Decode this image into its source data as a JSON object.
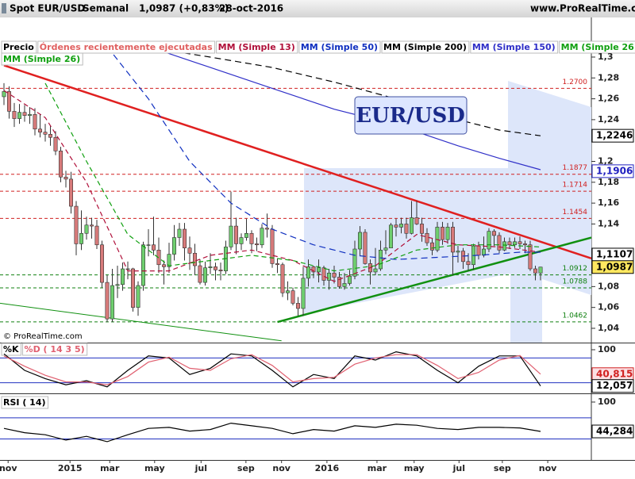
{
  "header": {
    "instrument": "Spot EUR/USD",
    "period": "Semanal",
    "quote": "1,0987 (+0,83%)",
    "date": "28-oct-2016",
    "site": "www.ProRealTime.com"
  },
  "copyright": "© ProRealTime.com",
  "legend_extra": [
    "Precio",
    "Órdenes recientemente ejecutadas"
  ],
  "chart_data": [
    {
      "type": "candlestick",
      "title": "EUR/USD",
      "xlim": [
        -0.77,
        113.85
      ],
      "ylim": [
        1.0263,
        1.3167
      ],
      "xticks": [
        {
          "value": 0.8,
          "label": "nov"
        },
        {
          "value": 12.8,
          "label": "2015"
        },
        {
          "value": 20.5,
          "label": "mar"
        },
        {
          "value": 29.2,
          "label": "may"
        },
        {
          "value": 38.2,
          "label": "jul"
        },
        {
          "value": 46.9,
          "label": "sep"
        },
        {
          "value": 53.8,
          "label": "nov"
        },
        {
          "value": 62.6,
          "label": "2016"
        },
        {
          "value": 72.3,
          "label": "mar"
        },
        {
          "value": 79.5,
          "label": "may"
        },
        {
          "value": 88.2,
          "label": "jul"
        },
        {
          "value": 96.6,
          "label": "sep"
        },
        {
          "value": 105.4,
          "label": "nov"
        }
      ],
      "yticks": [
        {
          "value": 1.3,
          "label": "1,3"
        },
        {
          "value": 1.28,
          "label": "1,28"
        },
        {
          "value": 1.26,
          "label": "1,26"
        },
        {
          "value": 1.24,
          "label": "1,24"
        },
        {
          "value": 1.2,
          "label": "1,2"
        },
        {
          "value": 1.18,
          "label": "1,18"
        },
        {
          "value": 1.16,
          "label": "1,16"
        },
        {
          "value": 1.14,
          "label": "1,14"
        },
        {
          "value": 1.08,
          "label": "1,08"
        },
        {
          "value": 1.06,
          "label": "1,06"
        },
        {
          "value": 1.04,
          "label": "1,04"
        }
      ],
      "up_color": "#6fcf6f",
      "down_color": "#d77a7a",
      "ohlc": {
        "open": [
          1.262,
          1.267,
          1.248,
          1.241,
          1.247,
          1.244,
          1.245,
          1.231,
          1.228,
          1.226,
          1.223,
          1.21,
          1.185,
          1.183,
          1.157,
          1.121,
          1.131,
          1.139,
          1.138,
          1.12,
          1.084,
          1.049,
          1.081,
          1.082,
          1.097,
          1.097,
          1.06,
          1.081,
          1.12,
          1.12,
          1.115,
          1.101,
          1.099,
          1.111,
          1.127,
          1.135,
          1.117,
          1.112,
          1.1,
          1.084,
          1.098,
          1.099,
          1.096,
          1.095,
          1.118,
          1.138,
          1.121,
          1.127,
          1.131,
          1.121,
          1.12,
          1.136,
          1.135,
          1.102,
          1.101,
          1.074,
          1.076,
          1.064,
          1.059,
          1.088,
          1.099,
          1.094,
          1.098,
          1.086,
          1.093,
          1.089,
          1.08,
          1.083,
          1.09,
          1.116,
          1.132,
          1.102,
          1.094,
          1.097,
          1.115,
          1.117,
          1.139,
          1.137,
          1.14,
          1.131,
          1.146,
          1.14,
          1.131,
          1.122,
          1.115,
          1.137,
          1.125,
          1.137,
          1.113,
          1.114,
          1.104,
          1.101,
          1.119,
          1.11,
          1.116,
          1.133,
          1.129,
          1.115,
          1.123,
          1.12,
          1.123,
          1.121,
          1.12,
          1.097,
          1.093
        ],
        "high": [
          1.275,
          1.272,
          1.256,
          1.255,
          1.254,
          1.252,
          1.251,
          1.245,
          1.236,
          1.234,
          1.229,
          1.214,
          1.191,
          1.19,
          1.162,
          1.153,
          1.147,
          1.146,
          1.144,
          1.124,
          1.091,
          1.097,
          1.1,
          1.103,
          1.104,
          1.098,
          1.085,
          1.123,
          1.135,
          1.147,
          1.127,
          1.105,
          1.122,
          1.139,
          1.141,
          1.141,
          1.128,
          1.121,
          1.106,
          1.104,
          1.112,
          1.103,
          1.103,
          1.124,
          1.171,
          1.146,
          1.131,
          1.145,
          1.134,
          1.127,
          1.14,
          1.15,
          1.139,
          1.107,
          1.103,
          1.085,
          1.079,
          1.07,
          1.099,
          1.106,
          1.1,
          1.106,
          1.1,
          1.097,
          1.1,
          1.094,
          1.093,
          1.096,
          1.124,
          1.138,
          1.135,
          1.106,
          1.117,
          1.124,
          1.134,
          1.141,
          1.145,
          1.146,
          1.146,
          1.162,
          1.162,
          1.146,
          1.136,
          1.126,
          1.142,
          1.142,
          1.141,
          1.142,
          1.119,
          1.117,
          1.112,
          1.121,
          1.123,
          1.128,
          1.136,
          1.135,
          1.132,
          1.127,
          1.127,
          1.127,
          1.128,
          1.124,
          1.124,
          1.1,
          1.099
        ],
        "low": [
          1.254,
          1.241,
          1.233,
          1.236,
          1.238,
          1.236,
          1.225,
          1.223,
          1.219,
          1.215,
          1.206,
          1.18,
          1.175,
          1.15,
          1.11,
          1.115,
          1.125,
          1.126,
          1.116,
          1.079,
          1.046,
          1.046,
          1.069,
          1.076,
          1.087,
          1.056,
          1.052,
          1.076,
          1.109,
          1.11,
          1.093,
          1.082,
          1.093,
          1.105,
          1.119,
          1.105,
          1.096,
          1.091,
          1.082,
          1.081,
          1.092,
          1.086,
          1.086,
          1.092,
          1.115,
          1.111,
          1.115,
          1.124,
          1.112,
          1.114,
          1.117,
          1.127,
          1.098,
          1.093,
          1.07,
          1.067,
          1.062,
          1.052,
          1.052,
          1.08,
          1.088,
          1.084,
          1.081,
          1.077,
          1.083,
          1.078,
          1.077,
          1.081,
          1.087,
          1.11,
          1.101,
          1.082,
          1.091,
          1.095,
          1.111,
          1.117,
          1.128,
          1.131,
          1.126,
          1.13,
          1.139,
          1.123,
          1.119,
          1.11,
          1.113,
          1.12,
          1.121,
          1.091,
          1.103,
          1.097,
          1.095,
          1.096,
          1.106,
          1.108,
          1.113,
          1.119,
          1.112,
          1.114,
          1.116,
          1.117,
          1.116,
          1.112,
          1.095,
          1.086,
          1.086
        ],
        "close": [
          1.267,
          1.248,
          1.241,
          1.247,
          1.244,
          1.245,
          1.231,
          1.228,
          1.226,
          1.223,
          1.21,
          1.185,
          1.183,
          1.157,
          1.121,
          1.131,
          1.139,
          1.138,
          1.12,
          1.084,
          1.049,
          1.081,
          1.082,
          1.097,
          1.097,
          1.06,
          1.081,
          1.12,
          1.12,
          1.115,
          1.101,
          1.099,
          1.111,
          1.127,
          1.135,
          1.117,
          1.112,
          1.1,
          1.084,
          1.098,
          1.099,
          1.096,
          1.095,
          1.118,
          1.138,
          1.121,
          1.127,
          1.131,
          1.121,
          1.12,
          1.136,
          1.135,
          1.102,
          1.101,
          1.074,
          1.076,
          1.064,
          1.059,
          1.088,
          1.099,
          1.094,
          1.098,
          1.086,
          1.093,
          1.089,
          1.08,
          1.083,
          1.09,
          1.116,
          1.132,
          1.102,
          1.094,
          1.097,
          1.115,
          1.117,
          1.139,
          1.137,
          1.14,
          1.131,
          1.146,
          1.14,
          1.131,
          1.122,
          1.115,
          1.137,
          1.125,
          1.137,
          1.113,
          1.114,
          1.104,
          1.101,
          1.119,
          1.11,
          1.116,
          1.133,
          1.129,
          1.115,
          1.123,
          1.12,
          1.123,
          1.121,
          1.12,
          1.097,
          1.093,
          1.0987
        ]
      },
      "series": [
        {
          "name": "MM (Simple 13)",
          "color": "#b0103a",
          "dash": "6 4",
          "x": [
            0,
            8,
            16,
            24,
            32,
            40,
            48,
            56,
            64,
            72,
            80,
            88,
            96,
            104
          ],
          "values": [
            1.268,
            1.242,
            1.18,
            1.095,
            1.095,
            1.11,
            1.115,
            1.105,
            1.085,
            1.1,
            1.13,
            1.12,
            1.118,
            1.113
          ]
        },
        {
          "name": "MM (Simple 50)",
          "color": "#1030c0",
          "dash": "8 5",
          "x": [
            20,
            28,
            36,
            44,
            52,
            60,
            68,
            76,
            84,
            92,
            100,
            104
          ],
          "values": [
            1.31,
            1.26,
            1.2,
            1.16,
            1.135,
            1.12,
            1.11,
            1.106,
            1.108,
            1.11,
            1.113,
            1.113
          ]
        },
        {
          "name": "MM (Simple 200)",
          "color": "#000000",
          "dash": "8 5",
          "x": [
            27,
            40,
            52,
            64,
            76,
            88,
            96,
            104
          ],
          "values": [
            1.31,
            1.3,
            1.29,
            1.276,
            1.26,
            1.24,
            1.23,
            1.2246
          ]
        },
        {
          "name": "MM (Simple 150)",
          "color": "#3030c8",
          "dash": "",
          "x": [
            28,
            40,
            52,
            64,
            76,
            88,
            96,
            104
          ],
          "values": [
            1.31,
            1.29,
            1.27,
            1.25,
            1.235,
            1.215,
            1.203,
            1.192
          ]
        },
        {
          "name": "MM (Simple 26)",
          "color": "#10a010",
          "dash": "6 4",
          "x": [
            8,
            16,
            24,
            32,
            40,
            48,
            56,
            64,
            72,
            80,
            88,
            96,
            104
          ],
          "values": [
            1.275,
            1.2,
            1.13,
            1.1,
            1.105,
            1.11,
            1.105,
            1.095,
            1.1,
            1.115,
            1.12,
            1.12,
            1.118
          ]
        }
      ],
      "levels": [
        {
          "value": 1.27,
          "label": "1.2700",
          "color": "#d02020"
        },
        {
          "value": 1.1877,
          "label": "1.1877",
          "color": "#d02020"
        },
        {
          "value": 1.1714,
          "label": "1.1714",
          "color": "#d02020"
        },
        {
          "value": 1.1454,
          "label": "1.1454",
          "color": "#d02020"
        },
        {
          "value": 1.0912,
          "label": "1.0912",
          "color": "#108010"
        },
        {
          "value": 1.0788,
          "label": "1.0788",
          "color": "#108010"
        },
        {
          "value": 1.0462,
          "label": "1.0462",
          "color": "#108010"
        }
      ],
      "trendlines": [
        {
          "color": "#e02020",
          "width": 2.5,
          "x": [
            0,
            113.85
          ],
          "values": [
            1.292,
            1.107
          ]
        },
        {
          "color": "#109010",
          "width": 2.5,
          "x": [
            53,
            113.85
          ],
          "values": [
            1.046,
            1.127
          ]
        },
        {
          "color": "#109010",
          "width": 1,
          "x": [
            -0.77,
            53.8
          ],
          "values": [
            1.064,
            1.028
          ]
        }
      ],
      "price_labels": [
        {
          "value": 1.2246,
          "label": "1,2246",
          "color": "#000000",
          "bg": "#ffffff"
        },
        {
          "value": 1.1906,
          "label": "1,1906",
          "color": "#2020c0",
          "bg": "#ffffff"
        },
        {
          "value": 1.1107,
          "label": "1,1107",
          "color": "#000000",
          "bg": "#ffffff"
        },
        {
          "value": 1.0987,
          "label": "1,0987",
          "color": "#000000",
          "bg": "#ffe860"
        }
      ]
    },
    {
      "type": "line",
      "title": "%K",
      "xlim": [
        -0.77,
        113.85
      ],
      "ylim": [
        -3.85,
        115.4
      ],
      "yticks": [
        100
      ],
      "levels": [
        80,
        20
      ],
      "series": [
        {
          "name": "%K",
          "color": "#000000",
          "x": [
            0,
            4,
            8,
            12,
            16,
            20,
            24,
            28,
            32,
            36,
            40,
            44,
            48,
            52,
            56,
            60,
            64,
            68,
            72,
            76,
            80,
            84,
            88,
            92,
            96,
            100,
            104
          ],
          "values": [
            90,
            50,
            30,
            15,
            25,
            10,
            50,
            85,
            80,
            40,
            55,
            90,
            85,
            50,
            10,
            40,
            30,
            85,
            75,
            95,
            85,
            50,
            20,
            60,
            85,
            85,
            12.057
          ]
        },
        {
          "name": "%D ( 14 3 5)",
          "color": "#e06070",
          "x": [
            0,
            4,
            8,
            12,
            16,
            20,
            24,
            28,
            32,
            36,
            40,
            44,
            48,
            52,
            56,
            60,
            64,
            68,
            72,
            76,
            80,
            84,
            88,
            92,
            96,
            100,
            104
          ],
          "values": [
            85,
            60,
            38,
            22,
            22,
            15,
            35,
            70,
            82,
            55,
            50,
            78,
            88,
            62,
            22,
            30,
            33,
            65,
            80,
            88,
            88,
            62,
            30,
            45,
            75,
            86,
            40.815
          ]
        }
      ],
      "price_labels": [
        {
          "value": 40.815,
          "label": "40,815",
          "color": "#d02020",
          "bg": "#fbe0e4"
        },
        {
          "value": 12.057,
          "label": "12,057",
          "color": "#000000",
          "bg": "#ffffff"
        }
      ]
    },
    {
      "type": "line",
      "title": "RSI ( 14)",
      "xlim": [
        -0.77,
        113.85
      ],
      "ylim": [
        -9.8,
        112
      ],
      "yticks": [
        100
      ],
      "levels": [
        70,
        30
      ],
      "series": [
        {
          "name": "RSI ( 14)",
          "color": "#000000",
          "x": [
            0,
            4,
            8,
            12,
            16,
            20,
            24,
            28,
            32,
            36,
            40,
            44,
            48,
            52,
            56,
            60,
            64,
            68,
            72,
            76,
            80,
            84,
            88,
            92,
            96,
            100,
            104
          ],
          "values": [
            50,
            42,
            38,
            28,
            35,
            25,
            38,
            50,
            52,
            45,
            48,
            60,
            55,
            50,
            40,
            48,
            45,
            55,
            52,
            58,
            56,
            50,
            48,
            52,
            52,
            51,
            44.284
          ]
        }
      ],
      "price_labels": [
        {
          "value": 44.284,
          "label": "44,284",
          "color": "#000000",
          "bg": "#ffffff"
        }
      ]
    }
  ]
}
